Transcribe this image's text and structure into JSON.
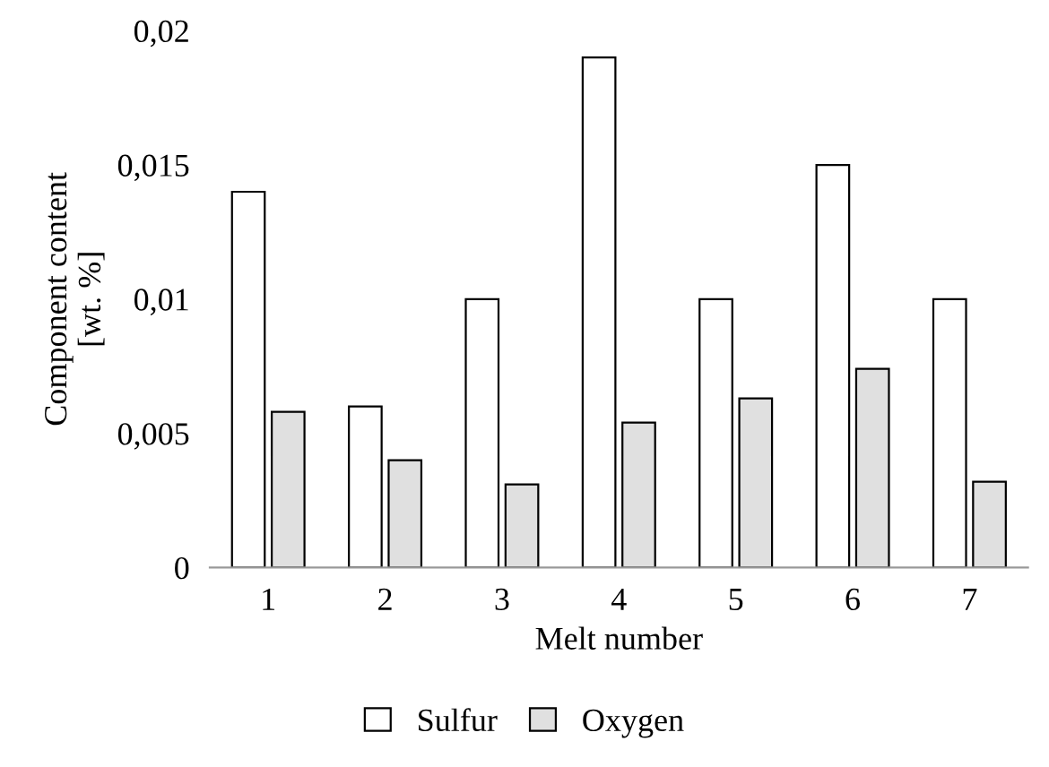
{
  "chart_data": {
    "type": "bar",
    "xlabel": "Melt number",
    "ylabel": "Component content\n[wt. %]",
    "categories": [
      "1",
      "2",
      "3",
      "4",
      "5",
      "6",
      "7"
    ],
    "series": [
      {
        "name": "Sulfur",
        "color": "#ffffff",
        "values": [
          0.014,
          0.006,
          0.01,
          0.019,
          0.01,
          0.015,
          0.01
        ]
      },
      {
        "name": "Oxygen",
        "color": "#e0e0e0",
        "values": [
          0.0058,
          0.004,
          0.0031,
          0.0054,
          0.0063,
          0.0074,
          0.0032
        ]
      }
    ],
    "ylim": [
      0,
      0.02
    ],
    "yticks": [
      {
        "value": 0,
        "label": "0"
      },
      {
        "value": 0.005,
        "label": "0,005"
      },
      {
        "value": 0.01,
        "label": "0,01"
      },
      {
        "value": 0.015,
        "label": "0,015"
      },
      {
        "value": 0.02,
        "label": "0,02"
      }
    ],
    "grid": false,
    "legend": "bottom"
  }
}
